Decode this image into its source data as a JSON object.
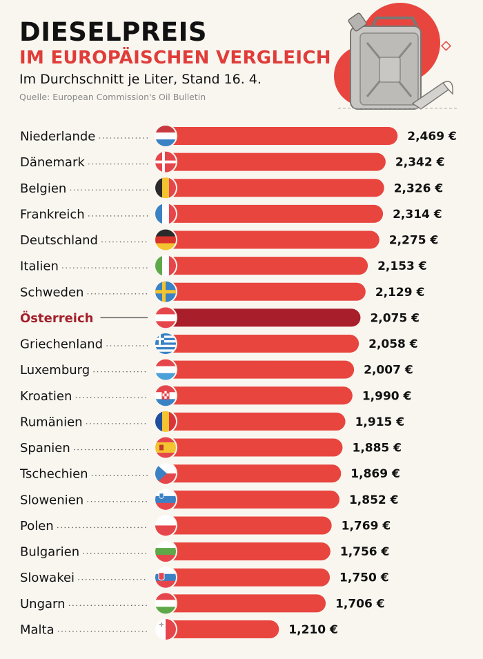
{
  "header": {
    "title": "DIESELPREIS",
    "subtitle_red": "IM EUROPÄISCHEN VERGLEICH",
    "subtitle": "Im Durchschnitt je Liter, Stand 16. 4.",
    "source": "Quelle: European Commission's Oil Bulletin"
  },
  "colors": {
    "bar": "#e8453f",
    "bar_highlight": "#a81e2a",
    "accent_red": "#e03c39",
    "background": "#f9f6f0"
  },
  "illustration": {
    "icon": "fuel-canister-icon",
    "secondary_icon": "funnel-icon"
  },
  "chart_data": {
    "type": "bar",
    "orientation": "horizontal",
    "title": "DIESELPREIS – IM EUROPÄISCHEN VERGLEICH",
    "subtitle": "Im Durchschnitt je Liter, Stand 16. 4.",
    "unit": "€",
    "highlight": "Österreich",
    "categories": [
      "Niederlande",
      "Dänemark",
      "Belgien",
      "Frankreich",
      "Deutschland",
      "Italien",
      "Schweden",
      "Österreich",
      "Griechenland",
      "Luxemburg",
      "Kroatien",
      "Rumänien",
      "Spanien",
      "Tschechien",
      "Slowenien",
      "Polen",
      "Bulgarien",
      "Slowakei",
      "Ungarn",
      "Malta"
    ],
    "values": [
      2.469,
      2.342,
      2.326,
      2.314,
      2.275,
      2.153,
      2.129,
      2.075,
      2.058,
      2.007,
      1.99,
      1.915,
      1.885,
      1.869,
      1.852,
      1.769,
      1.756,
      1.75,
      1.706,
      1.21
    ],
    "value_labels": [
      "2,469 €",
      "2,342 €",
      "2,326 €",
      "2,314 €",
      "2,275 €",
      "2,153 €",
      "2,129 €",
      "2,075 €",
      "2,058 €",
      "2,007 €",
      "1,990 €",
      "1,915 €",
      "1,885 €",
      "1,869 €",
      "1,852 €",
      "1,769 €",
      "1,756 €",
      "1,750 €",
      "1,706 €",
      "1,210 €"
    ],
    "flags": [
      "nl",
      "dk",
      "be",
      "fr",
      "de",
      "it",
      "se",
      "at",
      "gr",
      "lu",
      "hr",
      "ro",
      "es",
      "cz",
      "si",
      "pl",
      "bg",
      "sk",
      "hu",
      "mt"
    ],
    "xlim": [
      0,
      2.6
    ],
    "grid": false,
    "legend": "none"
  }
}
